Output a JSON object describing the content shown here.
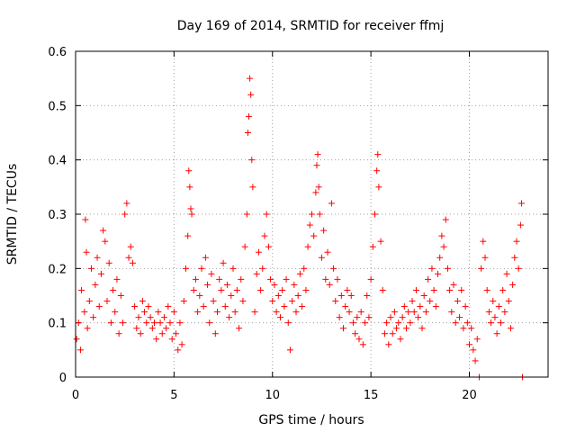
{
  "chart_data": {
    "type": "scatter",
    "title": "Day 169 of 2014, SRMTID for receiver ffmj",
    "xlabel": "GPS time / hours",
    "ylabel": "SRMTID / TECUs",
    "xlim": [
      0,
      24
    ],
    "ylim": [
      0,
      0.6
    ],
    "xticks": [
      0,
      5,
      10,
      15,
      20
    ],
    "xtick_labels": [
      "0",
      "5",
      "10",
      "15",
      "20"
    ],
    "yticks": [
      0,
      0.1,
      0.2,
      0.3,
      0.4,
      0.5,
      0.6
    ],
    "ytick_labels": [
      "0",
      "0.1",
      "0.2",
      "0.3",
      "0.4",
      "0.5",
      "0.6"
    ],
    "grid": true,
    "marker": "+",
    "color": "#ff0000",
    "series": [
      {
        "name": "SRMTID",
        "points": [
          [
            0.05,
            0.07
          ],
          [
            0.15,
            0.1
          ],
          [
            0.25,
            0.05
          ],
          [
            0.3,
            0.16
          ],
          [
            0.45,
            0.12
          ],
          [
            0.5,
            0.29
          ],
          [
            0.55,
            0.23
          ],
          [
            0.6,
            0.09
          ],
          [
            0.7,
            0.14
          ],
          [
            0.8,
            0.2
          ],
          [
            0.9,
            0.11
          ],
          [
            1.0,
            0.17
          ],
          [
            1.1,
            0.22
          ],
          [
            1.2,
            0.13
          ],
          [
            1.3,
            0.19
          ],
          [
            1.4,
            0.27
          ],
          [
            1.5,
            0.25
          ],
          [
            1.6,
            0.14
          ],
          [
            1.7,
            0.21
          ],
          [
            1.8,
            0.1
          ],
          [
            1.9,
            0.16
          ],
          [
            2.0,
            0.12
          ],
          [
            2.1,
            0.18
          ],
          [
            2.2,
            0.08
          ],
          [
            2.3,
            0.15
          ],
          [
            2.4,
            0.1
          ],
          [
            2.5,
            0.3
          ],
          [
            2.6,
            0.32
          ],
          [
            2.7,
            0.22
          ],
          [
            2.8,
            0.24
          ],
          [
            2.9,
            0.21
          ],
          [
            3.0,
            0.13
          ],
          [
            3.1,
            0.09
          ],
          [
            3.2,
            0.11
          ],
          [
            3.3,
            0.08
          ],
          [
            3.4,
            0.14
          ],
          [
            3.5,
            0.12
          ],
          [
            3.6,
            0.1
          ],
          [
            3.7,
            0.13
          ],
          [
            3.8,
            0.11
          ],
          [
            3.9,
            0.09
          ],
          [
            4.0,
            0.1
          ],
          [
            4.1,
            0.07
          ],
          [
            4.2,
            0.12
          ],
          [
            4.3,
            0.1
          ],
          [
            4.4,
            0.08
          ],
          [
            4.5,
            0.11
          ],
          [
            4.6,
            0.09
          ],
          [
            4.7,
            0.13
          ],
          [
            4.8,
            0.1
          ],
          [
            4.9,
            0.07
          ],
          [
            5.0,
            0.12
          ],
          [
            5.1,
            0.08
          ],
          [
            5.2,
            0.05
          ],
          [
            5.3,
            0.1
          ],
          [
            5.4,
            0.06
          ],
          [
            5.5,
            0.14
          ],
          [
            5.6,
            0.2
          ],
          [
            5.7,
            0.26
          ],
          [
            5.75,
            0.38
          ],
          [
            5.8,
            0.35
          ],
          [
            5.85,
            0.31
          ],
          [
            5.9,
            0.3
          ],
          [
            6.0,
            0.16
          ],
          [
            6.1,
            0.18
          ],
          [
            6.2,
            0.12
          ],
          [
            6.3,
            0.15
          ],
          [
            6.4,
            0.2
          ],
          [
            6.5,
            0.13
          ],
          [
            6.6,
            0.22
          ],
          [
            6.7,
            0.17
          ],
          [
            6.8,
            0.1
          ],
          [
            6.9,
            0.19
          ],
          [
            7.0,
            0.14
          ],
          [
            7.1,
            0.08
          ],
          [
            7.2,
            0.12
          ],
          [
            7.3,
            0.18
          ],
          [
            7.4,
            0.16
          ],
          [
            7.5,
            0.21
          ],
          [
            7.6,
            0.13
          ],
          [
            7.7,
            0.17
          ],
          [
            7.8,
            0.11
          ],
          [
            7.9,
            0.15
          ],
          [
            8.0,
            0.2
          ],
          [
            8.1,
            0.12
          ],
          [
            8.2,
            0.16
          ],
          [
            8.3,
            0.09
          ],
          [
            8.4,
            0.18
          ],
          [
            8.5,
            0.14
          ],
          [
            8.6,
            0.24
          ],
          [
            8.7,
            0.3
          ],
          [
            8.75,
            0.45
          ],
          [
            8.8,
            0.48
          ],
          [
            8.85,
            0.55
          ],
          [
            8.9,
            0.52
          ],
          [
            8.95,
            0.4
          ],
          [
            9.0,
            0.35
          ],
          [
            9.1,
            0.12
          ],
          [
            9.2,
            0.19
          ],
          [
            9.3,
            0.23
          ],
          [
            9.4,
            0.16
          ],
          [
            9.5,
            0.2
          ],
          [
            9.6,
            0.26
          ],
          [
            9.7,
            0.3
          ],
          [
            9.8,
            0.24
          ],
          [
            9.9,
            0.18
          ],
          [
            10.0,
            0.14
          ],
          [
            10.1,
            0.17
          ],
          [
            10.2,
            0.12
          ],
          [
            10.3,
            0.15
          ],
          [
            10.4,
            0.11
          ],
          [
            10.5,
            0.16
          ],
          [
            10.6,
            0.13
          ],
          [
            10.7,
            0.18
          ],
          [
            10.8,
            0.1
          ],
          [
            10.9,
            0.05
          ],
          [
            11.0,
            0.14
          ],
          [
            11.1,
            0.17
          ],
          [
            11.2,
            0.12
          ],
          [
            11.3,
            0.15
          ],
          [
            11.4,
            0.19
          ],
          [
            11.5,
            0.13
          ],
          [
            11.6,
            0.2
          ],
          [
            11.7,
            0.16
          ],
          [
            11.8,
            0.24
          ],
          [
            11.9,
            0.28
          ],
          [
            12.0,
            0.3
          ],
          [
            12.1,
            0.26
          ],
          [
            12.2,
            0.34
          ],
          [
            12.25,
            0.39
          ],
          [
            12.3,
            0.41
          ],
          [
            12.35,
            0.35
          ],
          [
            12.4,
            0.3
          ],
          [
            12.5,
            0.22
          ],
          [
            12.6,
            0.27
          ],
          [
            12.7,
            0.18
          ],
          [
            12.8,
            0.23
          ],
          [
            12.9,
            0.17
          ],
          [
            13.0,
            0.32
          ],
          [
            13.1,
            0.2
          ],
          [
            13.2,
            0.14
          ],
          [
            13.3,
            0.18
          ],
          [
            13.4,
            0.11
          ],
          [
            13.5,
            0.15
          ],
          [
            13.6,
            0.09
          ],
          [
            13.7,
            0.13
          ],
          [
            13.8,
            0.16
          ],
          [
            13.9,
            0.12
          ],
          [
            14.0,
            0.15
          ],
          [
            14.1,
            0.1
          ],
          [
            14.2,
            0.08
          ],
          [
            14.3,
            0.11
          ],
          [
            14.4,
            0.07
          ],
          [
            14.5,
            0.12
          ],
          [
            14.6,
            0.06
          ],
          [
            14.7,
            0.1
          ],
          [
            14.8,
            0.15
          ],
          [
            14.9,
            0.11
          ],
          [
            15.0,
            0.18
          ],
          [
            15.1,
            0.24
          ],
          [
            15.2,
            0.3
          ],
          [
            15.3,
            0.38
          ],
          [
            15.35,
            0.41
          ],
          [
            15.4,
            0.35
          ],
          [
            15.5,
            0.25
          ],
          [
            15.6,
            0.16
          ],
          [
            15.7,
            0.08
          ],
          [
            15.8,
            0.1
          ],
          [
            15.9,
            0.06
          ],
          [
            16.0,
            0.11
          ],
          [
            16.1,
            0.08
          ],
          [
            16.2,
            0.12
          ],
          [
            16.3,
            0.09
          ],
          [
            16.4,
            0.1
          ],
          [
            16.5,
            0.07
          ],
          [
            16.6,
            0.11
          ],
          [
            16.7,
            0.13
          ],
          [
            16.8,
            0.09
          ],
          [
            16.9,
            0.12
          ],
          [
            17.0,
            0.1
          ],
          [
            17.1,
            0.14
          ],
          [
            17.2,
            0.12
          ],
          [
            17.3,
            0.16
          ],
          [
            17.4,
            0.11
          ],
          [
            17.5,
            0.13
          ],
          [
            17.6,
            0.09
          ],
          [
            17.7,
            0.15
          ],
          [
            17.8,
            0.12
          ],
          [
            17.9,
            0.18
          ],
          [
            18.0,
            0.14
          ],
          [
            18.1,
            0.2
          ],
          [
            18.2,
            0.16
          ],
          [
            18.3,
            0.13
          ],
          [
            18.4,
            0.19
          ],
          [
            18.5,
            0.22
          ],
          [
            18.6,
            0.26
          ],
          [
            18.7,
            0.24
          ],
          [
            18.8,
            0.29
          ],
          [
            18.9,
            0.2
          ],
          [
            19.0,
            0.16
          ],
          [
            19.1,
            0.12
          ],
          [
            19.2,
            0.17
          ],
          [
            19.3,
            0.1
          ],
          [
            19.4,
            0.14
          ],
          [
            19.5,
            0.11
          ],
          [
            19.6,
            0.16
          ],
          [
            19.7,
            0.09
          ],
          [
            19.8,
            0.13
          ],
          [
            19.9,
            0.1
          ],
          [
            20.0,
            0.06
          ],
          [
            20.1,
            0.09
          ],
          [
            20.2,
            0.05
          ],
          [
            20.3,
            0.03
          ],
          [
            20.4,
            0.07
          ],
          [
            20.5,
            0.0
          ],
          [
            20.6,
            0.2
          ],
          [
            20.7,
            0.25
          ],
          [
            20.8,
            0.22
          ],
          [
            20.9,
            0.16
          ],
          [
            21.0,
            0.12
          ],
          [
            21.1,
            0.1
          ],
          [
            21.2,
            0.14
          ],
          [
            21.3,
            0.11
          ],
          [
            21.4,
            0.08
          ],
          [
            21.5,
            0.13
          ],
          [
            21.6,
            0.1
          ],
          [
            21.7,
            0.16
          ],
          [
            21.8,
            0.12
          ],
          [
            21.9,
            0.19
          ],
          [
            22.0,
            0.14
          ],
          [
            22.1,
            0.09
          ],
          [
            22.2,
            0.17
          ],
          [
            22.3,
            0.22
          ],
          [
            22.4,
            0.25
          ],
          [
            22.5,
            0.2
          ],
          [
            22.6,
            0.28
          ],
          [
            22.65,
            0.32
          ],
          [
            22.7,
            0.0
          ]
        ]
      }
    ]
  }
}
